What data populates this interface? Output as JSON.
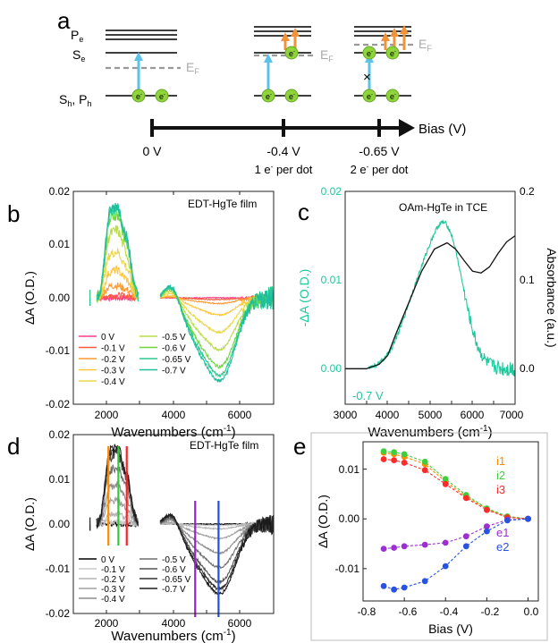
{
  "panel_a": {
    "panel_label": "a",
    "levels": {
      "pe": "P",
      "pe_sub": "e",
      "se": "S",
      "se_sub": "e",
      "sh": "S",
      "sh_sub": "h",
      "ph_sep": ", P",
      "ph_sub": "h"
    },
    "fermi": "E",
    "fermi_sub": "F",
    "electron": "e",
    "electron_sup": "-",
    "block_mark": "×",
    "bias_axis": "Bias (V)",
    "ticks": [
      {
        "label": "0 V",
        "note": "",
        "note_sup": "",
        "note_rest": ""
      },
      {
        "label": "-0.4 V",
        "note": "1 e",
        "note_sup": "-",
        "note_rest": " per dot"
      },
      {
        "label": "-0.65 V",
        "note": "2 e",
        "note_sup": "-",
        "note_rest": " per dot"
      }
    ]
  },
  "chart_data": [
    {
      "panel_label": "b",
      "type": "line",
      "annotation": "EDT-HgTe film",
      "xlabel": "Wavenumbers (cm",
      "xlabel_sup": "-1",
      "xlabel_end": ")",
      "ylabel": "ΔA (O.D.)",
      "xlim": [
        1000,
        7000
      ],
      "ylim": [
        -0.02,
        0.02
      ],
      "xticks": [
        "2000",
        "4000",
        "6000"
      ],
      "yticks": [
        "0.02",
        "0.01",
        "0.00",
        "-0.01",
        "-0.02"
      ],
      "legend": {
        "col1": [
          "0 V",
          "-0.1 V",
          "-0.2 V",
          "-0.3 V",
          "-0.4 V"
        ],
        "col2": [
          "-0.5 V",
          "-0.6 V",
          "-0.65 V",
          "-0.7 V"
        ]
      },
      "series_colors": [
        "#ff3c8a",
        "#ff5a3c",
        "#ff9a33",
        "#ffc63a",
        "#e8d84a",
        "#b8dd44",
        "#6fd640",
        "#2cc890",
        "#1bbf9e"
      ],
      "series": [
        {
          "name": "0 V",
          "i": 0.0,
          "e": 0.0
        },
        {
          "name": "-0.1 V",
          "i": 0.0004,
          "e": -0.0003
        },
        {
          "name": "-0.2 V",
          "i": 0.002,
          "e": -0.001
        },
        {
          "name": "-0.3 V",
          "i": 0.0045,
          "e": -0.003
        },
        {
          "name": "-0.4 V",
          "i": 0.0075,
          "e": -0.006
        },
        {
          "name": "-0.5 V",
          "i": 0.011,
          "e": -0.009
        },
        {
          "name": "-0.6 V",
          "i": 0.0135,
          "e": -0.012
        },
        {
          "name": "-0.65 V",
          "i": 0.0145,
          "e": -0.0135
        },
        {
          "name": "-0.7 V",
          "i": 0.015,
          "e": -0.0145
        }
      ]
    },
    {
      "panel_label": "c",
      "type": "line",
      "annotation": "OAm-HgTe in TCE",
      "series_label": "-0.7 V",
      "xlabel": "Wavenumbers (cm",
      "xlabel_sup": "-1",
      "xlabel_end": ")",
      "ylabel_left": "-ΔA (O.D.)",
      "ylabel_right": "Absorbance (a.u.)",
      "xlim": [
        3000,
        7000
      ],
      "ylim_left": [
        -0.004,
        0.02
      ],
      "ylim_right": [
        -0.04,
        0.2
      ],
      "xticks": [
        "3000",
        "4000",
        "5000",
        "6000",
        "7000"
      ],
      "yticks_left": [
        "0.02",
        "0.01",
        "0.00"
      ],
      "yticks_right": [
        "0.2",
        "0.1",
        "0.0"
      ],
      "absorbance": {
        "x": [
          3000,
          3500,
          3800,
          4000,
          4200,
          4500,
          4800,
          5100,
          5400,
          5600,
          5800,
          6000,
          6200,
          6400,
          6600,
          6800,
          7000
        ],
        "y": [
          0.0,
          0.0,
          0.005,
          0.015,
          0.04,
          0.075,
          0.11,
          0.135,
          0.142,
          0.135,
          0.122,
          0.11,
          0.108,
          0.115,
          0.13,
          0.143,
          0.15
        ]
      },
      "colors": {
        "delta": "#1ec89c",
        "absorbance": "#111111"
      }
    },
    {
      "panel_label": "d",
      "type": "line",
      "annotation": "EDT-HgTe film",
      "xlabel": "Wavenumbers (cm",
      "xlabel_sup": "-1",
      "xlabel_end": ")",
      "ylabel": "ΔA (O.D.)",
      "xlim": [
        1000,
        7000
      ],
      "ylim": [
        -0.02,
        0.02
      ],
      "xticks": [
        "2000",
        "4000",
        "6000"
      ],
      "yticks": [
        "0.02",
        "0.01",
        "0.00",
        "-0.01",
        "-0.02"
      ],
      "legend": {
        "col1": [
          "0 V",
          "-0.1 V",
          "-0.2 V",
          "-0.3 V",
          "-0.4 V"
        ],
        "col2": [
          "-0.5 V",
          "-0.6 V",
          "-0.65 V",
          "-0.7 V"
        ]
      },
      "series_colors": [
        "#000000",
        "#c8c8c8",
        "#b4b4b4",
        "#a0a0a0",
        "#8c8c8c",
        "#6e6e6e",
        "#505050",
        "#323232",
        "#1a1a1a"
      ],
      "markers": [
        {
          "x": 2050,
          "color": "#ff8a00"
        },
        {
          "x": 2350,
          "color": "#2ecc2e"
        },
        {
          "x": 2600,
          "color": "#ff2020"
        },
        {
          "x": 4650,
          "color": "#9a20c8"
        },
        {
          "x": 5350,
          "color": "#2050e0"
        }
      ]
    },
    {
      "panel_label": "e",
      "type": "scatter",
      "xlabel": "Bias (V)",
      "ylabel": "ΔA (O.D.)",
      "xlim": [
        -0.8,
        0.05
      ],
      "ylim": [
        -0.0165,
        0.0155
      ],
      "xticks": [
        "-0.8",
        "-0.6",
        "-0.4",
        "-0.2",
        "0.0"
      ],
      "yticks": [
        "0.01",
        "0.00",
        "-0.01"
      ],
      "x": [
        -0.7,
        -0.65,
        -0.6,
        -0.5,
        -0.4,
        -0.3,
        -0.2,
        -0.1,
        0.0
      ],
      "series": [
        {
          "name": "i1",
          "color": "#ff8a00",
          "values": [
            0.0133,
            0.013,
            0.0125,
            0.011,
            0.0075,
            0.0045,
            0.002,
            0.0004,
            0.0
          ]
        },
        {
          "name": "i2",
          "color": "#3ecf3e",
          "values": [
            0.0136,
            0.0134,
            0.013,
            0.0115,
            0.008,
            0.0048,
            0.0021,
            0.0005,
            0.0
          ]
        },
        {
          "name": "i3",
          "color": "#ff2a2a",
          "values": [
            0.012,
            0.0118,
            0.0113,
            0.0098,
            0.007,
            0.0042,
            0.0018,
            0.0003,
            0.0
          ]
        },
        {
          "name": "e1",
          "color": "#9b2fcf",
          "values": [
            -0.006,
            -0.0058,
            -0.0055,
            -0.0052,
            -0.0048,
            -0.0035,
            -0.0015,
            -0.0002,
            0.0
          ]
        },
        {
          "name": "e2",
          "color": "#2a52e0",
          "values": [
            -0.0135,
            -0.0142,
            -0.0138,
            -0.0125,
            -0.0095,
            -0.0055,
            -0.0025,
            -0.0003,
            0.0
          ]
        }
      ]
    }
  ]
}
